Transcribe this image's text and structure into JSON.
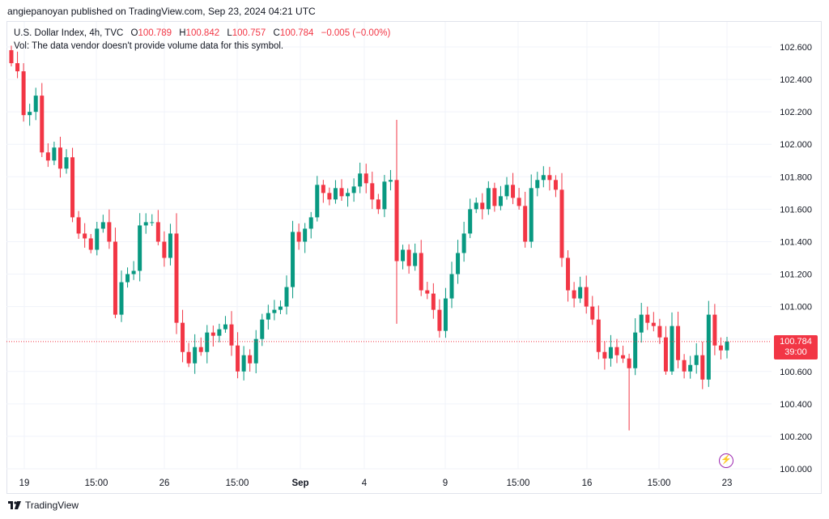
{
  "attribution": "angiepanoyan published on TradingView.com, Sep 23, 2024 04:21 UTC",
  "legend": {
    "symbol": "U.S. Dollar Index, 4h, TVC",
    "o_label": "O",
    "o_value": "100.789",
    "h_label": "H",
    "h_value": "100.842",
    "l_label": "L",
    "l_value": "100.757",
    "c_label": "C",
    "c_value": "100.784",
    "change": "−0.005 (−0.00%)",
    "volume_note": "Vol: The data vendor doesn't provide volume data for this symbol."
  },
  "price_tag": {
    "price": "100.784",
    "countdown": "39:00"
  },
  "footer": {
    "brand": "TradingView"
  },
  "colors": {
    "up": "#089981",
    "down": "#f23645",
    "grid": "#f0f3fa",
    "axis_text": "#131722",
    "accent": "#9c27b0"
  },
  "icons": {
    "lightning": "lightning-icon",
    "logo": "tradingview-logo-icon"
  },
  "chart_data": {
    "type": "candlestick",
    "ylim": [
      100.0,
      102.7
    ],
    "y_ticks": [
      "100.000",
      "100.200",
      "100.400",
      "100.600",
      "100.800",
      "101.000",
      "101.200",
      "101.400",
      "101.600",
      "101.800",
      "102.000",
      "102.200",
      "102.400",
      "102.600"
    ],
    "x_tick_labels": [
      "19",
      "15:00",
      "26",
      "15:00",
      "Sep",
      "4",
      "9",
      "15:00",
      "16",
      "15:00",
      "23"
    ],
    "last_price": 100.784,
    "closes": [
      102.5,
      102.45,
      102.18,
      102.2,
      102.3,
      101.95,
      101.9,
      101.98,
      101.85,
      101.92,
      101.55,
      101.45,
      101.42,
      101.35,
      101.48,
      101.52,
      101.4,
      100.95,
      101.15,
      101.2,
      101.22,
      101.5,
      101.52,
      101.52,
      101.4,
      101.3,
      101.45,
      100.9,
      100.72,
      100.65,
      100.75,
      100.72,
      100.84,
      100.82,
      100.86,
      100.89,
      100.76,
      100.6,
      100.7,
      100.65,
      100.8,
      100.92,
      100.96,
      100.98,
      101.0,
      101.12,
      101.46,
      101.4,
      101.48,
      101.55,
      101.75,
      101.7,
      101.66,
      101.73,
      101.68,
      101.7,
      101.74,
      101.82,
      101.76,
      101.66,
      101.6,
      101.77,
      101.78,
      101.28,
      101.35,
      101.25,
      101.33,
      101.1,
      101.08,
      100.98,
      100.85,
      101.05,
      101.2,
      101.33,
      101.45,
      101.6,
      101.64,
      101.6,
      101.73,
      101.62,
      101.68,
      101.75,
      101.67,
      101.62,
      101.4,
      101.73,
      101.78,
      101.81,
      101.78,
      101.72,
      101.3,
      101.1,
      101.05,
      101.12,
      101.0,
      100.92,
      100.72,
      100.68,
      100.75,
      100.7,
      100.68,
      100.62,
      100.84,
      100.95,
      100.9,
      100.88,
      100.81,
      100.6,
      100.88,
      100.67,
      100.6,
      100.64,
      100.7,
      100.55,
      100.95,
      100.76,
      100.73,
      100.784
    ]
  }
}
